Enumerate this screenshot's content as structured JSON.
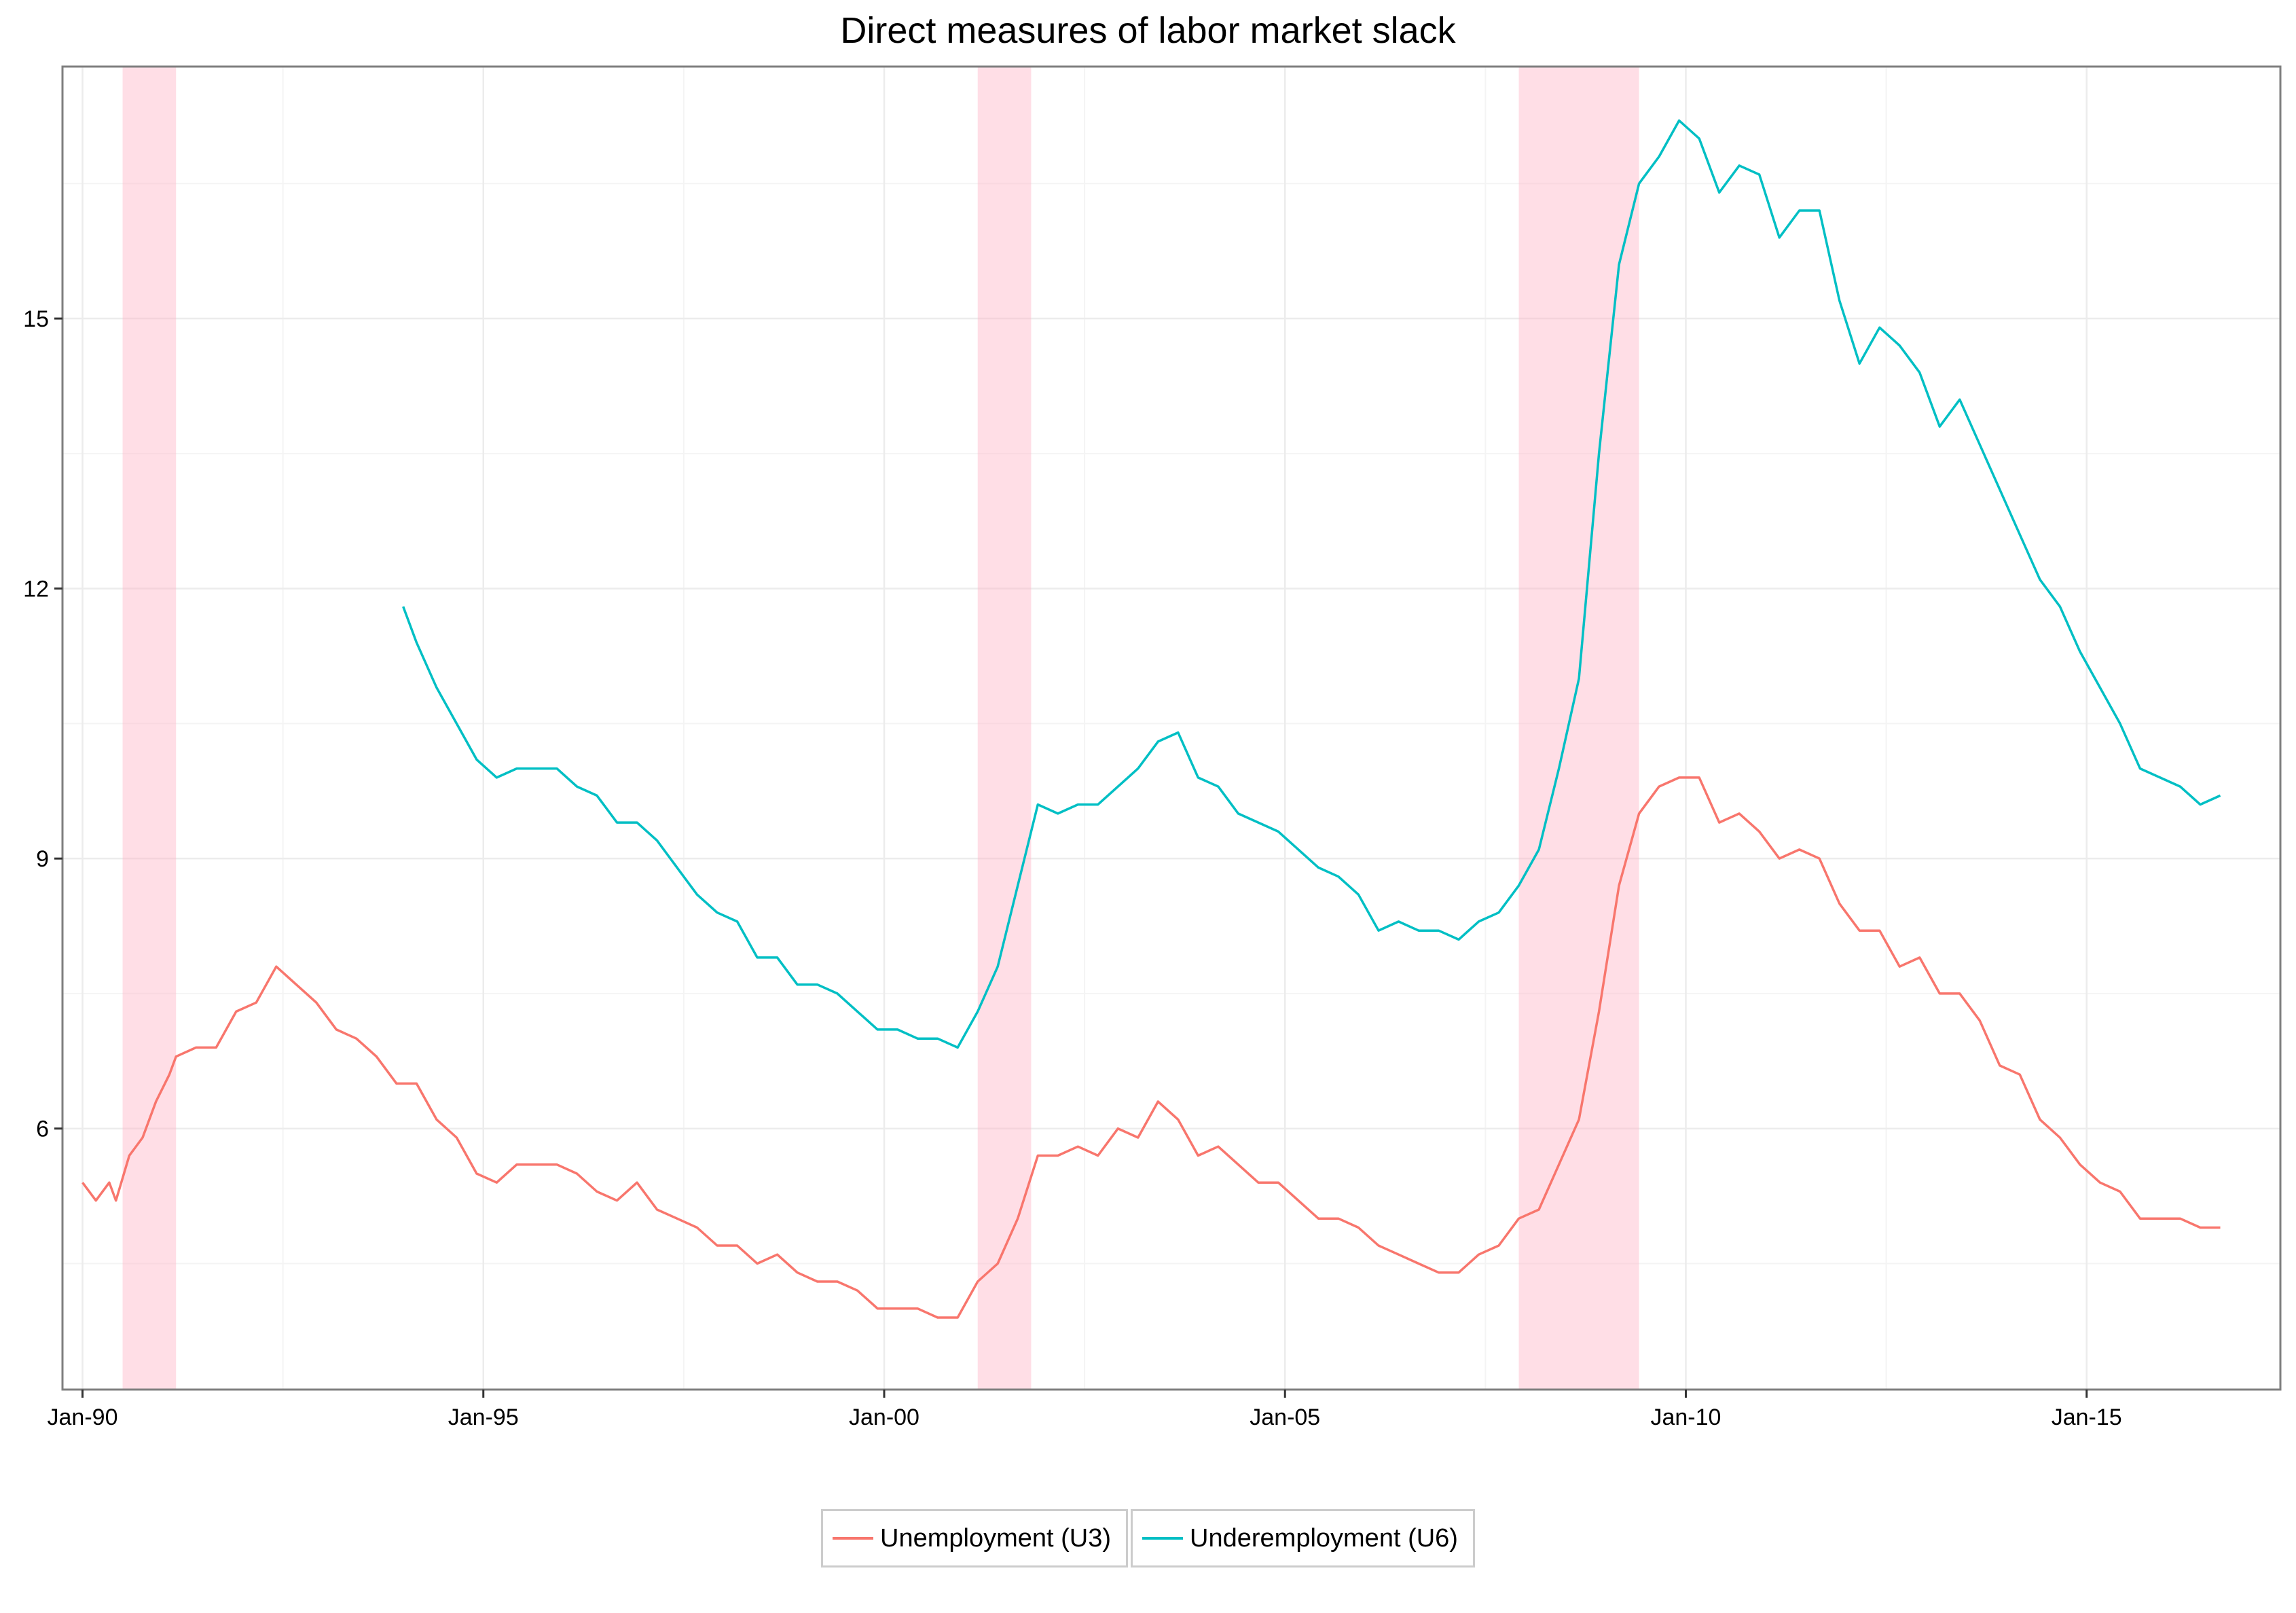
{
  "chart_data": {
    "type": "line",
    "title": "Direct measures of labor market slack",
    "xlabel": "",
    "ylabel": "",
    "x_range": [
      "1989-10",
      "2017-06"
    ],
    "ylim": [
      3.1,
      17.8
    ],
    "x_ticks": [
      {
        "label": "Jan-90",
        "date": "1990-01"
      },
      {
        "label": "Jan-95",
        "date": "1995-01"
      },
      {
        "label": "Jan-00",
        "date": "2000-01"
      },
      {
        "label": "Jan-05",
        "date": "2005-01"
      },
      {
        "label": "Jan-10",
        "date": "2010-01"
      },
      {
        "label": "Jan-15",
        "date": "2015-01"
      }
    ],
    "y_ticks": [
      6,
      9,
      12,
      15
    ],
    "grid": true,
    "legend_position": "bottom",
    "recessions": [
      {
        "start": "1990-07",
        "end": "1991-03"
      },
      {
        "start": "2001-03",
        "end": "2001-11"
      },
      {
        "start": "2007-12",
        "end": "2009-06"
      }
    ],
    "series": [
      {
        "name": "Unemployment (U3)",
        "color": "#F8766D",
        "points": [
          [
            "1990-01",
            5.4
          ],
          [
            "1990-03",
            5.2
          ],
          [
            "1990-05",
            5.4
          ],
          [
            "1990-06",
            5.2
          ],
          [
            "1990-08",
            5.7
          ],
          [
            "1990-10",
            5.9
          ],
          [
            "1990-12",
            6.3
          ],
          [
            "1991-02",
            6.6
          ],
          [
            "1991-03",
            6.8
          ],
          [
            "1991-06",
            6.9
          ],
          [
            "1991-09",
            6.9
          ],
          [
            "1991-12",
            7.3
          ],
          [
            "1992-03",
            7.4
          ],
          [
            "1992-06",
            7.8
          ],
          [
            "1992-09",
            7.6
          ],
          [
            "1992-12",
            7.4
          ],
          [
            "1993-03",
            7.1
          ],
          [
            "1993-06",
            7.0
          ],
          [
            "1993-09",
            6.8
          ],
          [
            "1993-12",
            6.5
          ],
          [
            "1994-03",
            6.5
          ],
          [
            "1994-06",
            6.1
          ],
          [
            "1994-09",
            5.9
          ],
          [
            "1994-12",
            5.5
          ],
          [
            "1995-03",
            5.4
          ],
          [
            "1995-06",
            5.6
          ],
          [
            "1995-09",
            5.6
          ],
          [
            "1995-12",
            5.6
          ],
          [
            "1996-03",
            5.5
          ],
          [
            "1996-06",
            5.3
          ],
          [
            "1996-09",
            5.2
          ],
          [
            "1996-12",
            5.4
          ],
          [
            "1997-03",
            5.1
          ],
          [
            "1997-06",
            5.0
          ],
          [
            "1997-09",
            4.9
          ],
          [
            "1997-12",
            4.7
          ],
          [
            "1998-03",
            4.7
          ],
          [
            "1998-06",
            4.5
          ],
          [
            "1998-09",
            4.6
          ],
          [
            "1998-12",
            4.4
          ],
          [
            "1999-03",
            4.3
          ],
          [
            "1999-06",
            4.3
          ],
          [
            "1999-09",
            4.2
          ],
          [
            "1999-12",
            4.0
          ],
          [
            "2000-03",
            4.0
          ],
          [
            "2000-06",
            4.0
          ],
          [
            "2000-09",
            3.9
          ],
          [
            "2000-12",
            3.9
          ],
          [
            "2001-03",
            4.3
          ],
          [
            "2001-06",
            4.5
          ],
          [
            "2001-09",
            5.0
          ],
          [
            "2001-12",
            5.7
          ],
          [
            "2002-03",
            5.7
          ],
          [
            "2002-06",
            5.8
          ],
          [
            "2002-09",
            5.7
          ],
          [
            "2002-12",
            6.0
          ],
          [
            "2003-03",
            5.9
          ],
          [
            "2003-06",
            6.3
          ],
          [
            "2003-09",
            6.1
          ],
          [
            "2003-12",
            5.7
          ],
          [
            "2004-03",
            5.8
          ],
          [
            "2004-06",
            5.6
          ],
          [
            "2004-09",
            5.4
          ],
          [
            "2004-12",
            5.4
          ],
          [
            "2005-03",
            5.2
          ],
          [
            "2005-06",
            5.0
          ],
          [
            "2005-09",
            5.0
          ],
          [
            "2005-12",
            4.9
          ],
          [
            "2006-03",
            4.7
          ],
          [
            "2006-06",
            4.6
          ],
          [
            "2006-09",
            4.5
          ],
          [
            "2006-12",
            4.4
          ],
          [
            "2007-03",
            4.4
          ],
          [
            "2007-06",
            4.6
          ],
          [
            "2007-09",
            4.7
          ],
          [
            "2007-12",
            5.0
          ],
          [
            "2008-03",
            5.1
          ],
          [
            "2008-06",
            5.6
          ],
          [
            "2008-09",
            6.1
          ],
          [
            "2008-12",
            7.3
          ],
          [
            "2009-03",
            8.7
          ],
          [
            "2009-06",
            9.5
          ],
          [
            "2009-09",
            9.8
          ],
          [
            "2009-12",
            9.9
          ],
          [
            "2010-03",
            9.9
          ],
          [
            "2010-06",
            9.4
          ],
          [
            "2010-09",
            9.5
          ],
          [
            "2010-12",
            9.3
          ],
          [
            "2011-03",
            9.0
          ],
          [
            "2011-06",
            9.1
          ],
          [
            "2011-09",
            9.0
          ],
          [
            "2011-12",
            8.5
          ],
          [
            "2012-03",
            8.2
          ],
          [
            "2012-06",
            8.2
          ],
          [
            "2012-09",
            7.8
          ],
          [
            "2012-12",
            7.9
          ],
          [
            "2013-03",
            7.5
          ],
          [
            "2013-06",
            7.5
          ],
          [
            "2013-09",
            7.2
          ],
          [
            "2013-12",
            6.7
          ],
          [
            "2014-03",
            6.6
          ],
          [
            "2014-06",
            6.1
          ],
          [
            "2014-09",
            5.9
          ],
          [
            "2014-12",
            5.6
          ],
          [
            "2015-03",
            5.4
          ],
          [
            "2015-06",
            5.3
          ],
          [
            "2015-09",
            5.0
          ],
          [
            "2015-12",
            5.0
          ],
          [
            "2016-03",
            5.0
          ],
          [
            "2016-06",
            4.9
          ],
          [
            "2016-09",
            4.9
          ]
        ]
      },
      {
        "name": "Underemployment (U6)",
        "color": "#00BFC4",
        "points": [
          [
            "1994-01",
            11.8
          ],
          [
            "1994-03",
            11.4
          ],
          [
            "1994-06",
            10.9
          ],
          [
            "1994-09",
            10.5
          ],
          [
            "1994-12",
            10.1
          ],
          [
            "1995-03",
            9.9
          ],
          [
            "1995-06",
            10.0
          ],
          [
            "1995-09",
            10.0
          ],
          [
            "1995-12",
            10.0
          ],
          [
            "1996-03",
            9.8
          ],
          [
            "1996-06",
            9.7
          ],
          [
            "1996-09",
            9.4
          ],
          [
            "1996-12",
            9.4
          ],
          [
            "1997-03",
            9.2
          ],
          [
            "1997-06",
            8.9
          ],
          [
            "1997-09",
            8.6
          ],
          [
            "1997-12",
            8.4
          ],
          [
            "1998-03",
            8.3
          ],
          [
            "1998-06",
            7.9
          ],
          [
            "1998-09",
            7.9
          ],
          [
            "1998-12",
            7.6
          ],
          [
            "1999-03",
            7.6
          ],
          [
            "1999-06",
            7.5
          ],
          [
            "1999-09",
            7.3
          ],
          [
            "1999-12",
            7.1
          ],
          [
            "2000-03",
            7.1
          ],
          [
            "2000-06",
            7.0
          ],
          [
            "2000-09",
            7.0
          ],
          [
            "2000-12",
            6.9
          ],
          [
            "2001-03",
            7.3
          ],
          [
            "2001-06",
            7.8
          ],
          [
            "2001-09",
            8.7
          ],
          [
            "2001-12",
            9.6
          ],
          [
            "2002-03",
            9.5
          ],
          [
            "2002-06",
            9.6
          ],
          [
            "2002-09",
            9.6
          ],
          [
            "2002-12",
            9.8
          ],
          [
            "2003-03",
            10.0
          ],
          [
            "2003-06",
            10.3
          ],
          [
            "2003-09",
            10.4
          ],
          [
            "2003-12",
            9.9
          ],
          [
            "2004-03",
            9.8
          ],
          [
            "2004-06",
            9.5
          ],
          [
            "2004-09",
            9.4
          ],
          [
            "2004-12",
            9.3
          ],
          [
            "2005-03",
            9.1
          ],
          [
            "2005-06",
            8.9
          ],
          [
            "2005-09",
            8.8
          ],
          [
            "2005-12",
            8.6
          ],
          [
            "2006-03",
            8.2
          ],
          [
            "2006-06",
            8.3
          ],
          [
            "2006-09",
            8.2
          ],
          [
            "2006-12",
            8.2
          ],
          [
            "2007-03",
            8.1
          ],
          [
            "2007-06",
            8.3
          ],
          [
            "2007-09",
            8.4
          ],
          [
            "2007-12",
            8.7
          ],
          [
            "2008-03",
            9.1
          ],
          [
            "2008-06",
            10.0
          ],
          [
            "2008-09",
            11.0
          ],
          [
            "2008-12",
            13.5
          ],
          [
            "2009-03",
            15.6
          ],
          [
            "2009-06",
            16.5
          ],
          [
            "2009-09",
            16.8
          ],
          [
            "2009-12",
            17.2
          ],
          [
            "2010-03",
            17.0
          ],
          [
            "2010-06",
            16.4
          ],
          [
            "2010-09",
            16.7
          ],
          [
            "2010-12",
            16.6
          ],
          [
            "2011-03",
            15.9
          ],
          [
            "2011-06",
            16.2
          ],
          [
            "2011-09",
            16.2
          ],
          [
            "2011-12",
            15.2
          ],
          [
            "2012-03",
            14.5
          ],
          [
            "2012-06",
            14.9
          ],
          [
            "2012-09",
            14.7
          ],
          [
            "2012-12",
            14.4
          ],
          [
            "2013-03",
            13.8
          ],
          [
            "2013-06",
            14.1
          ],
          [
            "2013-09",
            13.6
          ],
          [
            "2013-12",
            13.1
          ],
          [
            "2014-03",
            12.6
          ],
          [
            "2014-06",
            12.1
          ],
          [
            "2014-09",
            11.8
          ],
          [
            "2014-12",
            11.3
          ],
          [
            "2015-03",
            10.9
          ],
          [
            "2015-06",
            10.5
          ],
          [
            "2015-09",
            10.0
          ],
          [
            "2015-12",
            9.9
          ],
          [
            "2016-03",
            9.8
          ],
          [
            "2016-06",
            9.6
          ],
          [
            "2016-09",
            9.7
          ]
        ]
      }
    ]
  }
}
